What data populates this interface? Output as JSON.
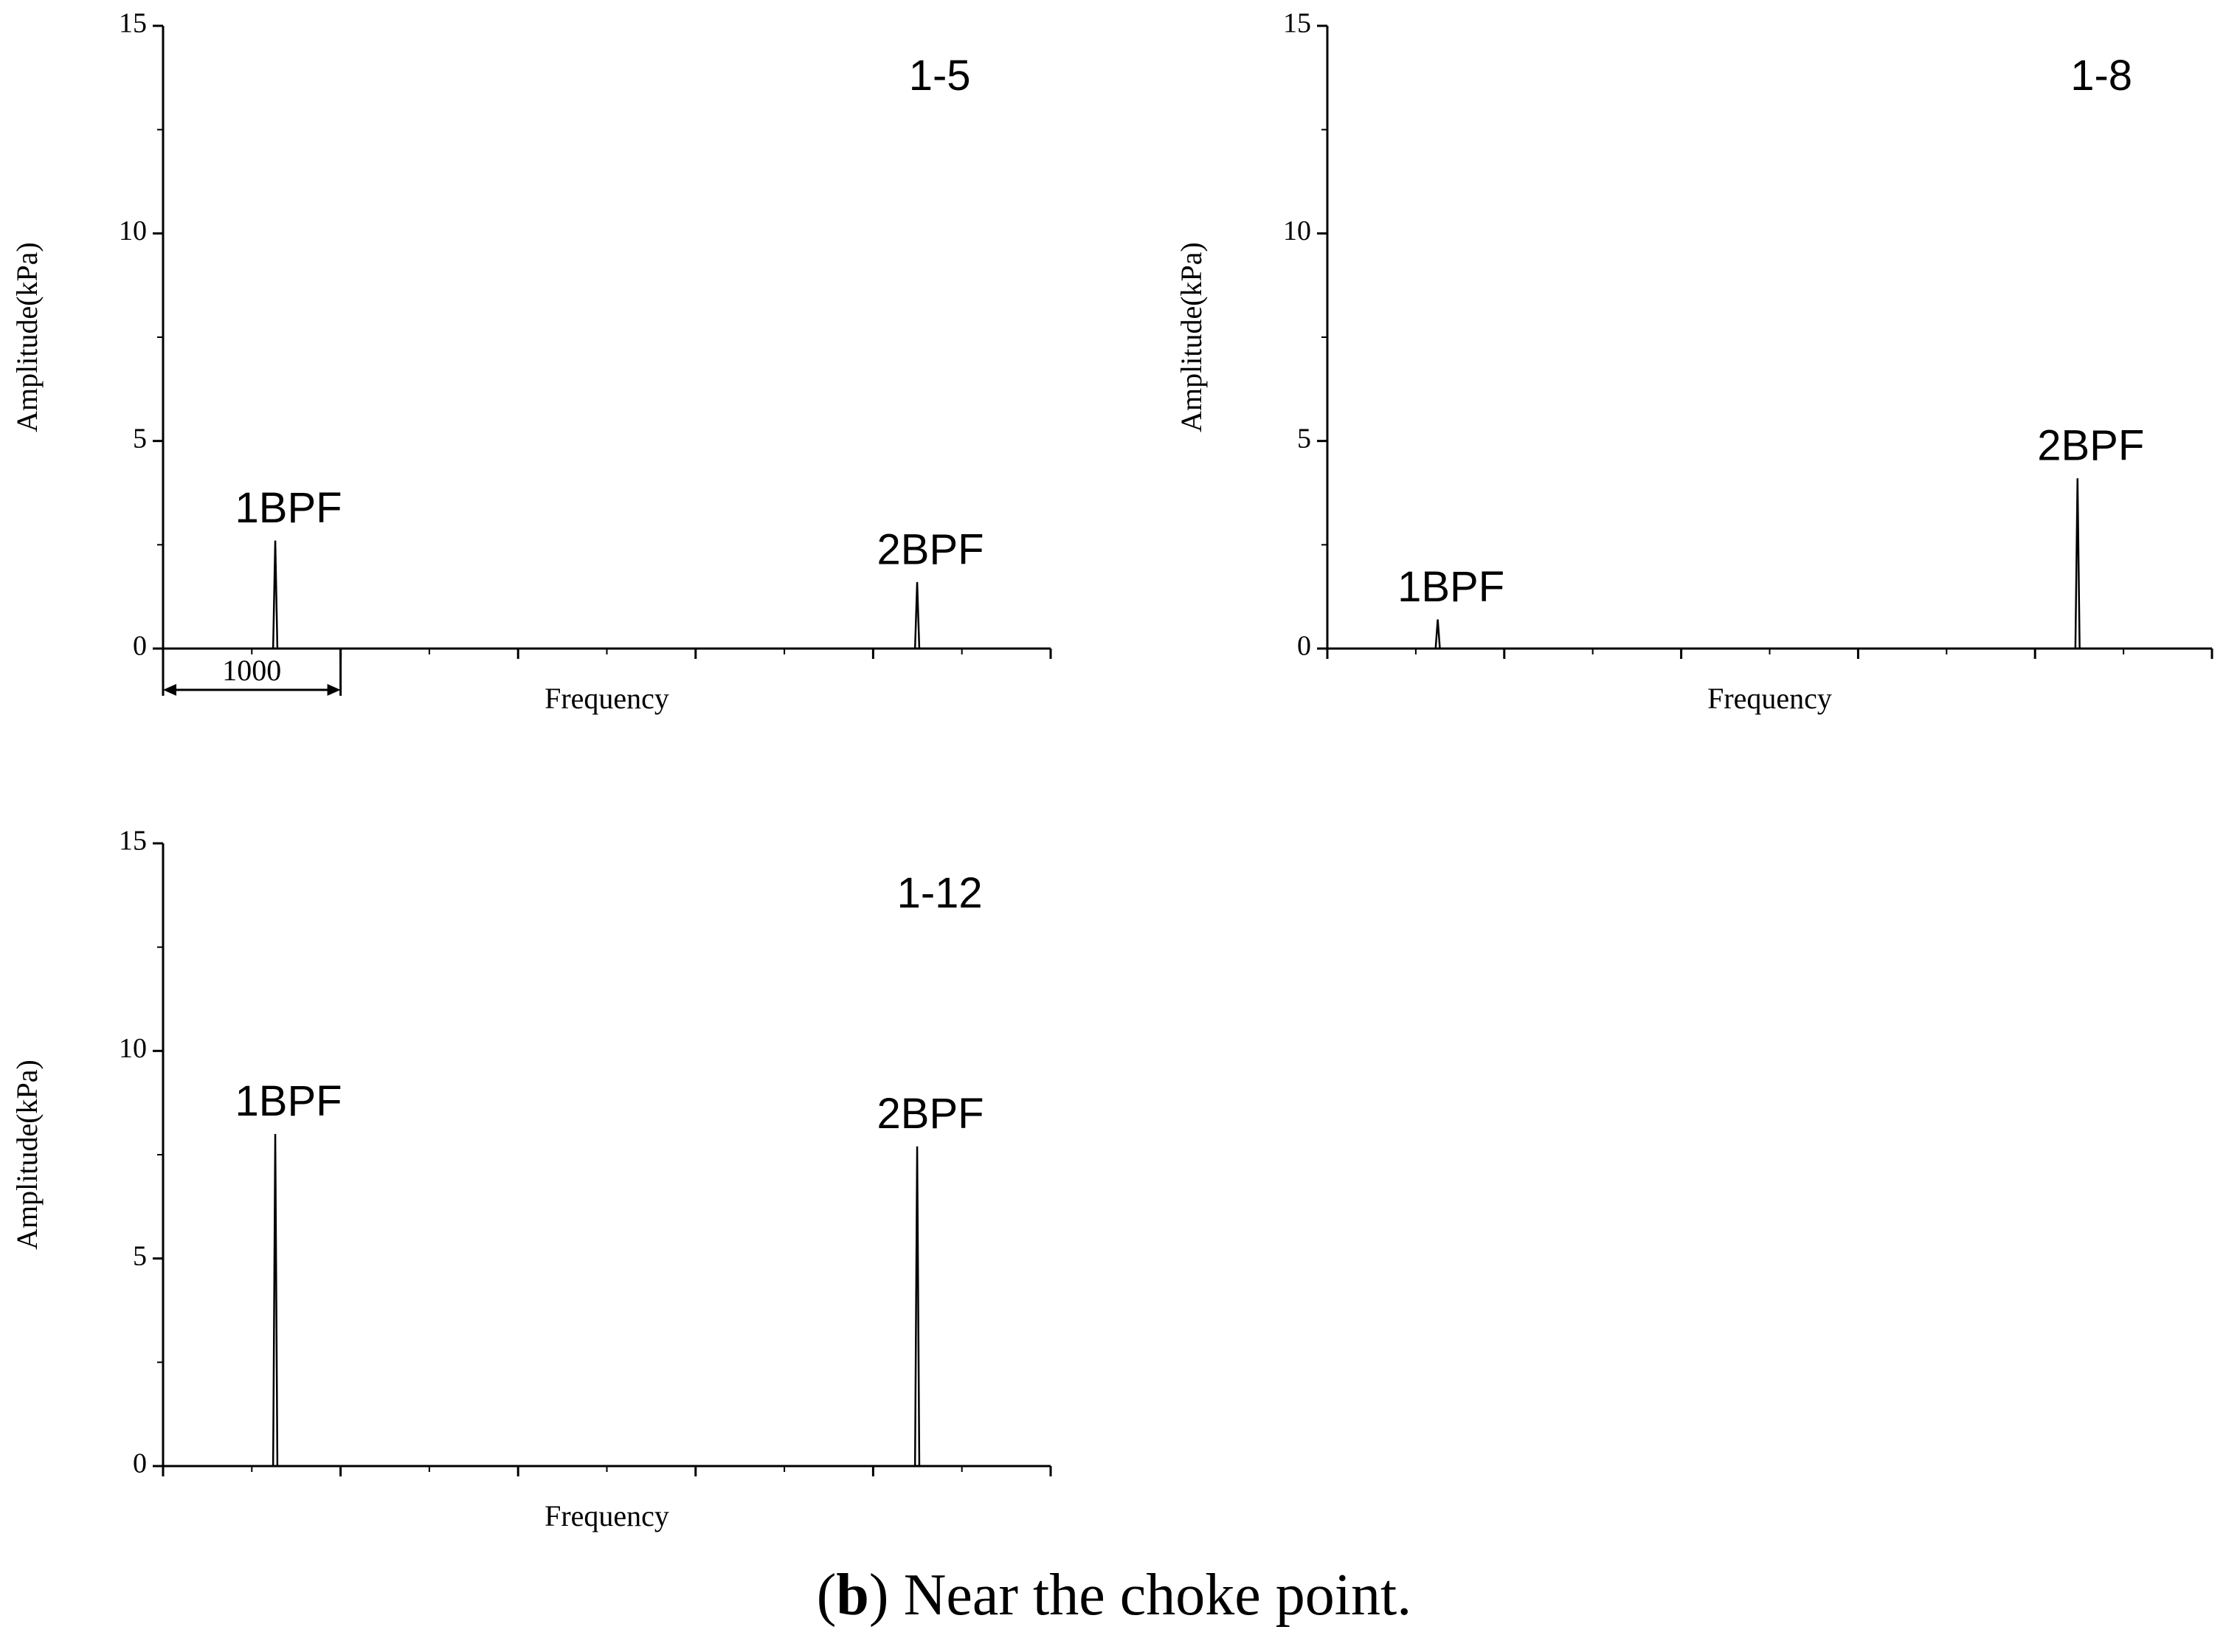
{
  "chart_data": [
    {
      "type": "line",
      "label": "1-5",
      "x_label": "Frequency",
      "y_label": "Amplitude(kPa)",
      "x": [
        0,
        620,
        632,
        644,
        4236,
        4248,
        4260,
        5000
      ],
      "values": [
        0,
        0,
        2.6,
        0,
        0,
        1.6,
        0,
        0
      ],
      "color": "#000000",
      "xlim": [
        0,
        5000
      ],
      "xticks": [
        0,
        1000,
        2000,
        3000,
        4000,
        5000
      ],
      "ylim": [
        0,
        15
      ],
      "yticks": [
        0,
        5,
        10,
        15
      ],
      "annotations": [
        "1BPF",
        "2BPF"
      ],
      "span_label": 1000
    },
    {
      "type": "line",
      "label": "1-8",
      "x_label": "Frequency",
      "y_label": "Amplitude(kPa)",
      "x": [
        0,
        612,
        624,
        636,
        4228,
        4240,
        4252,
        5000
      ],
      "values": [
        0,
        0,
        0.7,
        0,
        0,
        4.1,
        0,
        0
      ],
      "color": "#000000",
      "xlim": [
        0,
        5000
      ],
      "xticks": [
        0,
        1000,
        2000,
        3000,
        4000,
        5000
      ],
      "ylim": [
        0,
        15
      ],
      "yticks": [
        0,
        5,
        10,
        15
      ],
      "annotations": [
        "1BPF",
        "2BPF"
      ]
    },
    {
      "type": "line",
      "label": "1-12",
      "x_label": "Frequency",
      "y_label": "Amplitude(kPa)",
      "x": [
        0,
        620,
        632,
        644,
        4236,
        4248,
        4260,
        5000
      ],
      "values": [
        0,
        0,
        8.0,
        0,
        0,
        7.7,
        0,
        0
      ],
      "color": "#000000",
      "xlim": [
        0,
        5000
      ],
      "xticks": [
        0,
        1000,
        2000,
        3000,
        4000,
        5000
      ],
      "ylim": [
        0,
        15
      ],
      "yticks": [
        0,
        5,
        10,
        15
      ],
      "annotations": [
        "1BPF",
        "2BPF"
      ]
    }
  ],
  "caption": [
    "(",
    "b",
    ") Near the choke point."
  ]
}
